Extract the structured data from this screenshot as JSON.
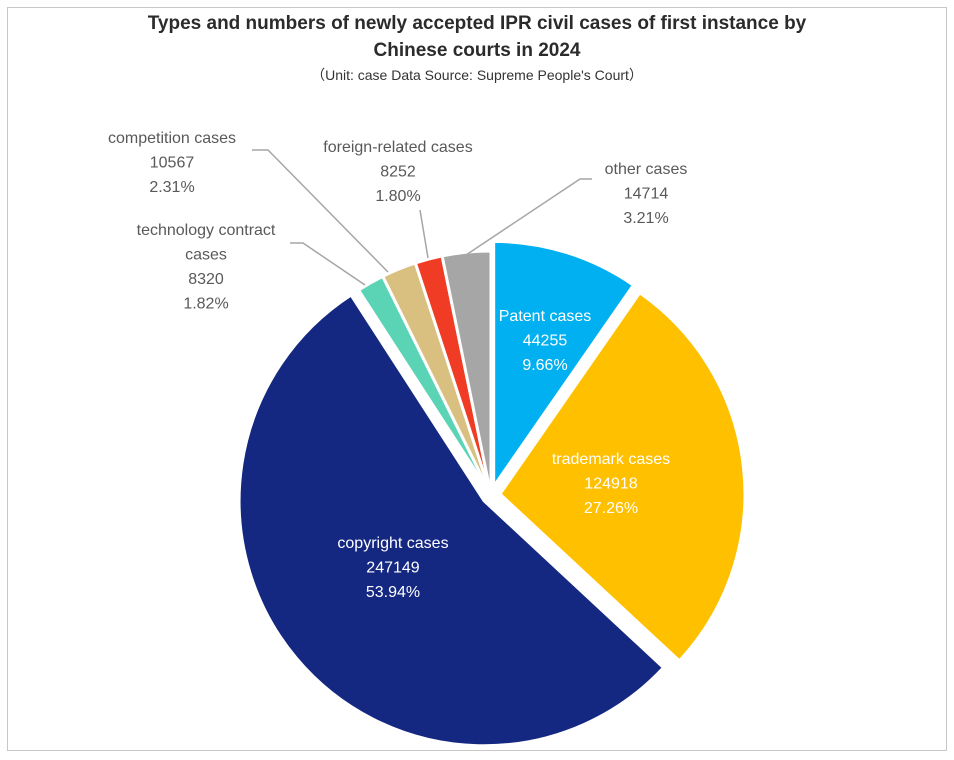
{
  "chart_data": {
    "type": "pie",
    "title_line1": "Types and numbers of newly accepted IPR civil cases of first instance by",
    "title_line2": "Chinese courts in 2024",
    "subtitle": "（Unit: case     Data Source: Supreme People's Court）",
    "slices": [
      {
        "name": "Patent cases",
        "value": 44255,
        "percent": "9.66%",
        "color": "#00b0f0",
        "label_color": "#ffffff",
        "exploded": true
      },
      {
        "name": "trademark cases",
        "value": 124918,
        "percent": "27.26%",
        "color": "#ffc000",
        "label_color": "#ffffff",
        "exploded": true
      },
      {
        "name": "copyright cases",
        "value": 247149,
        "percent": "53.94%",
        "color": "#142882",
        "label_color": "#ffffff",
        "exploded": true
      },
      {
        "name": "technology contract cases",
        "name_lines": [
          "technology contract",
          "cases"
        ],
        "value": 8320,
        "percent": "1.82%",
        "color": "#5bd3b5",
        "label_color": "#595959",
        "exploded": false
      },
      {
        "name": "competition cases",
        "value": 10567,
        "percent": "2.31%",
        "color": "#d9c080",
        "label_color": "#595959",
        "exploded": false
      },
      {
        "name": "foreign-related cases",
        "value": 8252,
        "percent": "1.80%",
        "color": "#f03c24",
        "label_color": "#595959",
        "exploded": false
      },
      {
        "name": "other cases",
        "value": 14714,
        "percent": "3.21%",
        "color": "#a6a6a6",
        "label_color": "#595959",
        "exploded": false
      }
    ]
  }
}
